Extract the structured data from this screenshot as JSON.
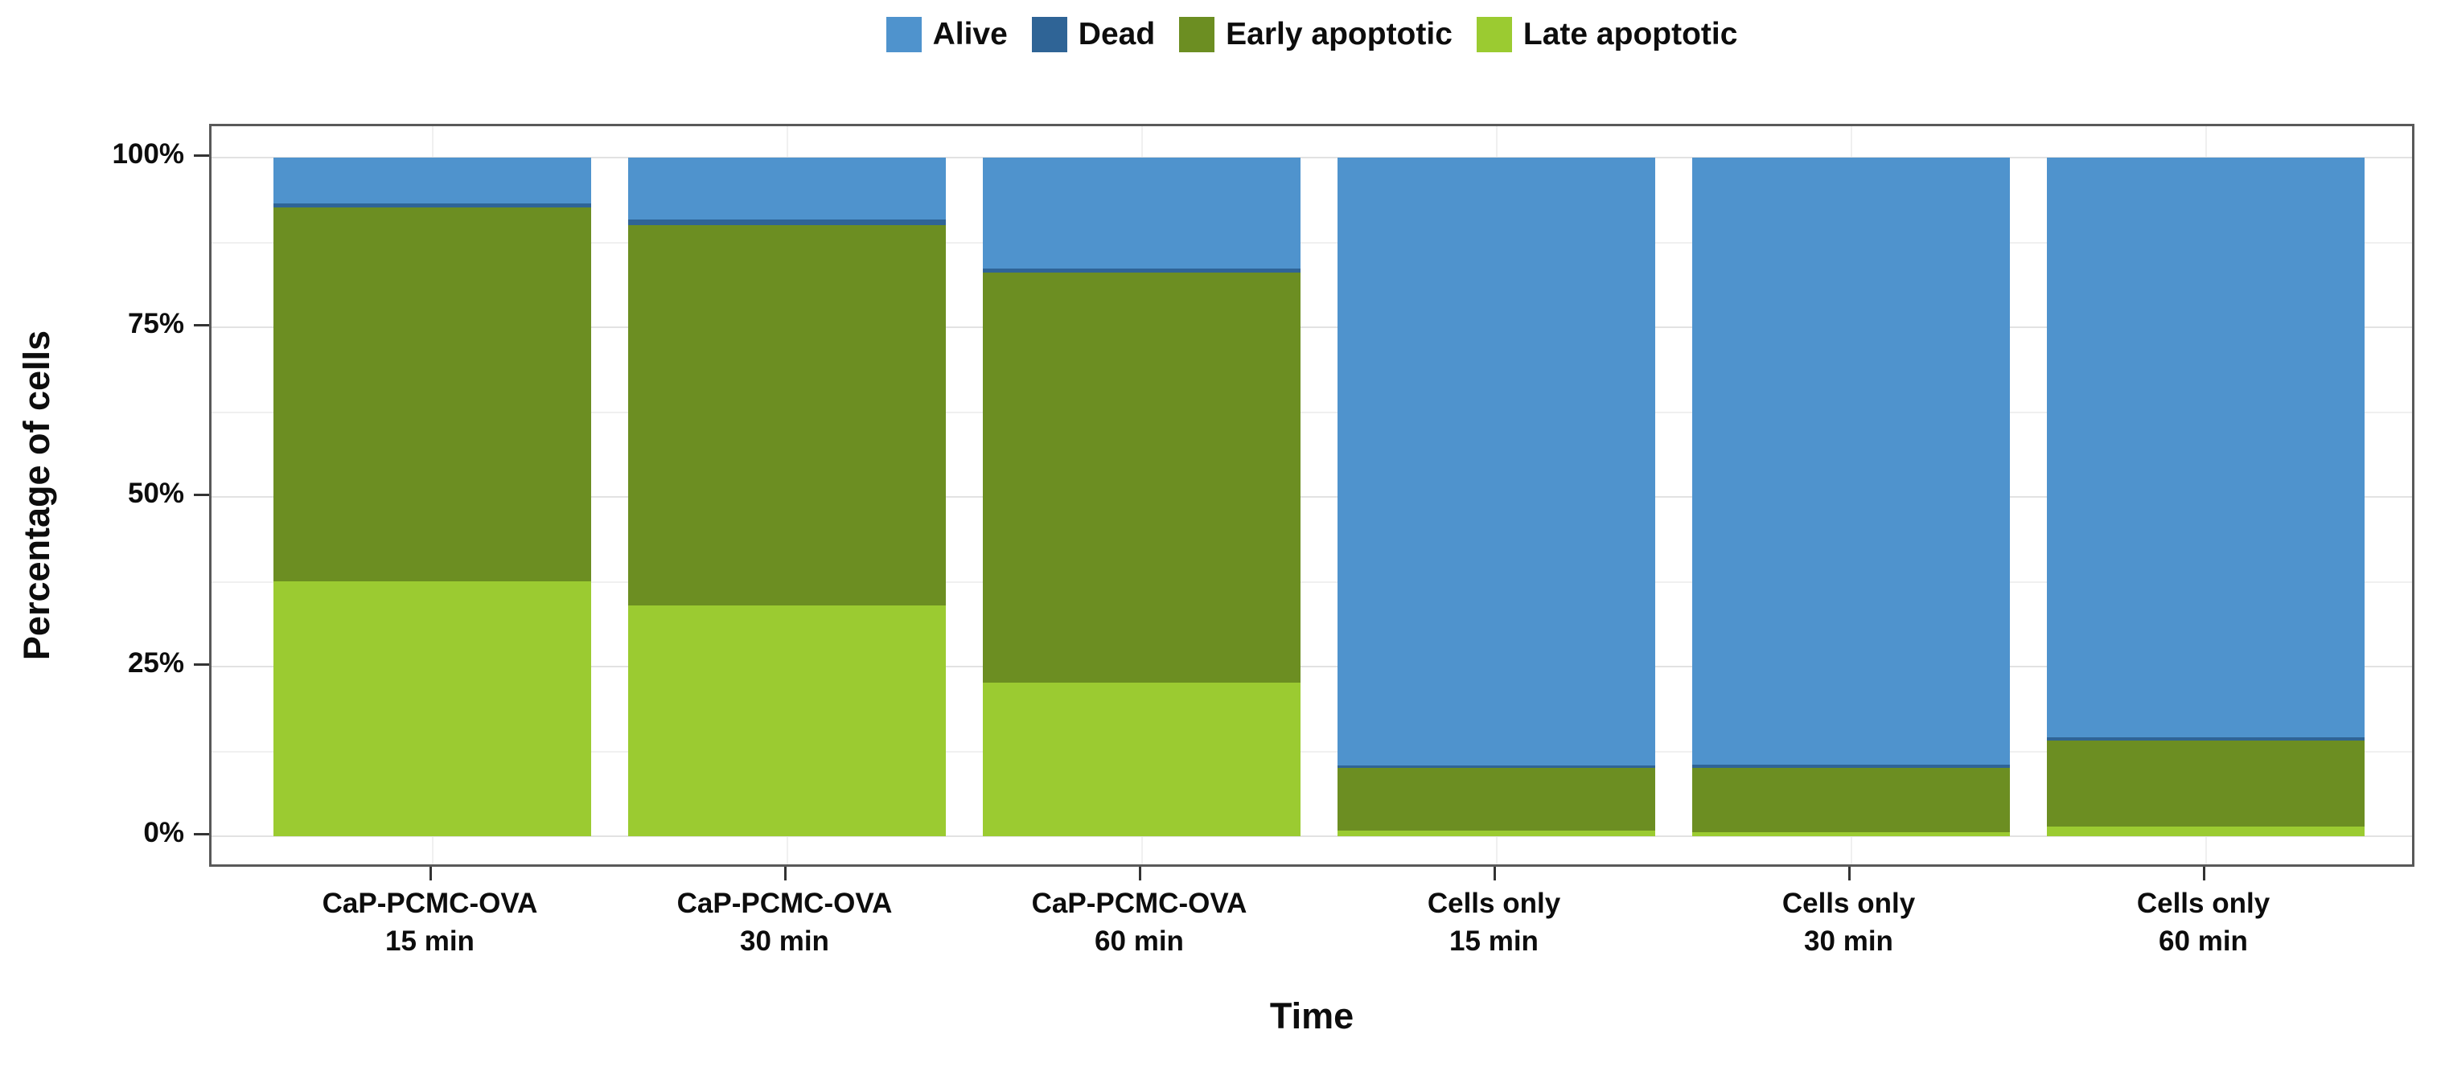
{
  "chart_data": {
    "type": "bar",
    "stacked": true,
    "orientation": "vertical",
    "title": "",
    "xlabel": "Time",
    "ylabel": "Percentage of cells",
    "ylim": [
      0,
      100
    ],
    "grid": true,
    "legend_position": "top",
    "y_major_ticks": [
      {
        "value": 0,
        "label": "0%"
      },
      {
        "value": 25,
        "label": "25%"
      },
      {
        "value": 50,
        "label": "50%"
      },
      {
        "value": 75,
        "label": "75%"
      },
      {
        "value": 100,
        "label": "100%"
      }
    ],
    "y_minor_values": [
      12.5,
      37.5,
      62.5,
      87.5
    ],
    "categories": [
      {
        "line1": "CaP-PCMC-OVA",
        "line2": "15 min"
      },
      {
        "line1": "CaP-PCMC-OVA",
        "line2": "30 min"
      },
      {
        "line1": "CaP-PCMC-OVA",
        "line2": "60 min"
      },
      {
        "line1": "Cells only",
        "line2": "15 min"
      },
      {
        "line1": "Cells only",
        "line2": "30 min"
      },
      {
        "line1": "Cells only",
        "line2": "60 min"
      }
    ],
    "series": [
      {
        "name": "Alive",
        "color": "#4f93cd",
        "values": [
          6.8,
          9.1,
          16.3,
          89.6,
          89.4,
          85.4
        ]
      },
      {
        "name": "Dead",
        "color": "#2f6496",
        "values": [
          0.5,
          0.9,
          0.6,
          0.3,
          0.5,
          0.5
        ]
      },
      {
        "name": "Early apoptotic",
        "color": "#6c8e22",
        "values": [
          55.1,
          56.0,
          60.5,
          9.3,
          9.5,
          12.7
        ]
      },
      {
        "name": "Late apoptotic",
        "color": "#9bcb31",
        "values": [
          37.6,
          34.0,
          22.6,
          0.8,
          0.6,
          1.4
        ]
      }
    ],
    "stack_order_bottom_to_top": [
      "Late apoptotic",
      "Early apoptotic",
      "Dead",
      "Alive"
    ]
  },
  "style_colors": {
    "grid_major": "#e2e2e2",
    "grid_minor": "#f0f0f0",
    "panel_border": "#595959",
    "tick": "#333333",
    "text": "#0d0d0d"
  }
}
